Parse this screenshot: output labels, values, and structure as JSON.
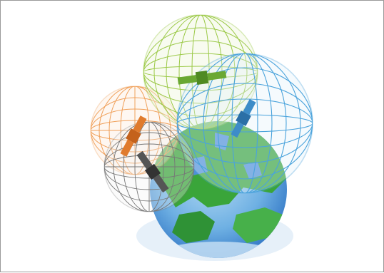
{
  "image": {
    "subject": "",
    "colors": {
      "frame_border": "#9a9a9a",
      "background": "#ffffff",
      "ocean": "#3f86d6",
      "land": "#3aa53a",
      "sphere_green": "#9bc947",
      "sphere_blue": "#4aa3dc",
      "sphere_orange": "#f0a05a",
      "sphere_gray": "#777777",
      "satellite_green": "#6aa832",
      "satellite_blue": "#3d8cc8",
      "satellite_orange": "#e07b2d",
      "satellite_gray": "#555555"
    },
    "icons": [
      "globe-icon",
      "satellite-icon",
      "wireframe-sphere-icon"
    ]
  }
}
